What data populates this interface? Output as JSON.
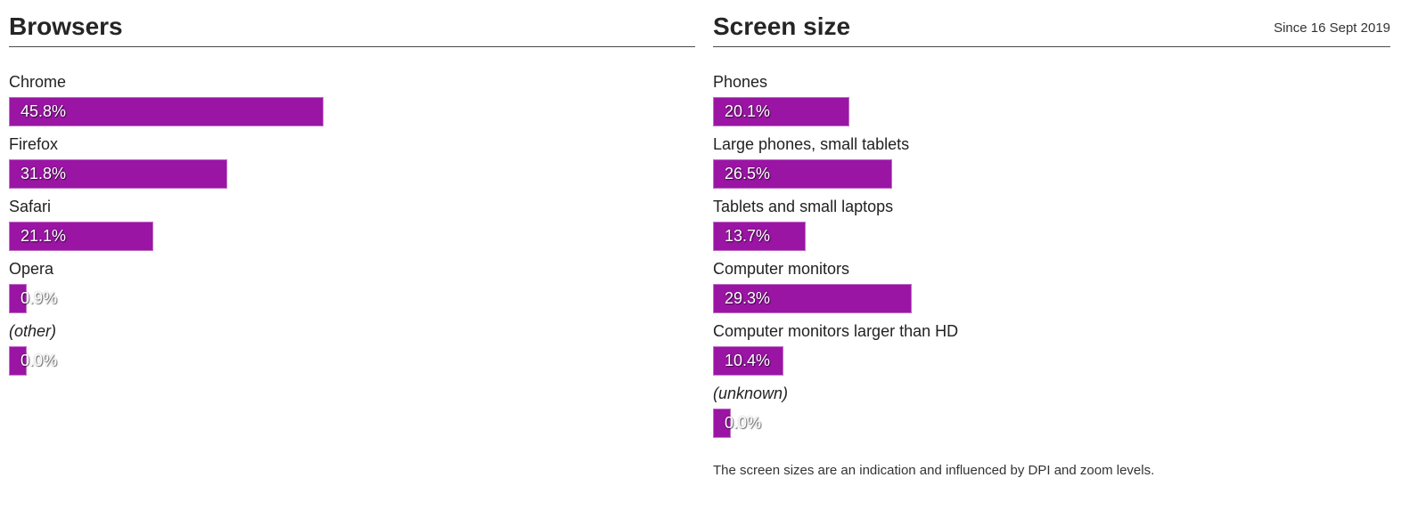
{
  "accent_color": "#9a15a4",
  "bar_border_tint": "rgba(255,255,255,0.38)",
  "sections": [
    {
      "title": "Browsers",
      "note": "",
      "footnote": "",
      "rows": [
        {
          "label": "Chrome",
          "value": "45.8%",
          "percent": 45.8,
          "italic": false
        },
        {
          "label": "Firefox",
          "value": "31.8%",
          "percent": 31.8,
          "italic": false
        },
        {
          "label": "Safari",
          "value": "21.1%",
          "percent": 21.1,
          "italic": false
        },
        {
          "label": "Opera",
          "value": "0.9%",
          "percent": 0.9,
          "italic": false
        },
        {
          "label": "(other)",
          "value": "0.0%",
          "percent": 0.0,
          "italic": true
        }
      ]
    },
    {
      "title": "Screen size",
      "note": "Since 16 Sept 2019",
      "footnote": "The screen sizes are an indication and influenced by DPI and zoom levels.",
      "rows": [
        {
          "label": "Phones",
          "value": "20.1%",
          "percent": 20.1,
          "italic": false
        },
        {
          "label": "Large phones, small tablets",
          "value": "26.5%",
          "percent": 26.5,
          "italic": false
        },
        {
          "label": "Tablets and small laptops",
          "value": "13.7%",
          "percent": 13.7,
          "italic": false
        },
        {
          "label": "Computer monitors",
          "value": "29.3%",
          "percent": 29.3,
          "italic": false
        },
        {
          "label": "Computer monitors larger than HD",
          "value": "10.4%",
          "percent": 10.4,
          "italic": false
        },
        {
          "label": "(unknown)",
          "value": "0.0%",
          "percent": 0.0,
          "italic": true
        }
      ]
    }
  ],
  "chart_data": [
    {
      "type": "bar",
      "orientation": "horizontal",
      "title": "Browsers",
      "categories": [
        "Chrome",
        "Firefox",
        "Safari",
        "Opera",
        "(other)"
      ],
      "values": [
        45.8,
        31.8,
        21.1,
        0.9,
        0.0
      ],
      "unit": "%",
      "xlim": [
        0,
        100
      ],
      "data_labels": "inside-start",
      "bar_color": "#9a15a4",
      "grid": false,
      "legend": "none"
    },
    {
      "type": "bar",
      "orientation": "horizontal",
      "title": "Screen size",
      "subtitle": "Since 16 Sept 2019",
      "categories": [
        "Phones",
        "Large phones, small tablets",
        "Tablets and small laptops",
        "Computer monitors",
        "Computer monitors larger than HD",
        "(unknown)"
      ],
      "values": [
        20.1,
        26.5,
        13.7,
        29.3,
        10.4,
        0.0
      ],
      "unit": "%",
      "xlim": [
        0,
        100
      ],
      "data_labels": "inside-start",
      "bar_color": "#9a15a4",
      "grid": false,
      "legend": "none",
      "annotation": "The screen sizes are an indication and influenced by DPI and zoom levels."
    }
  ]
}
